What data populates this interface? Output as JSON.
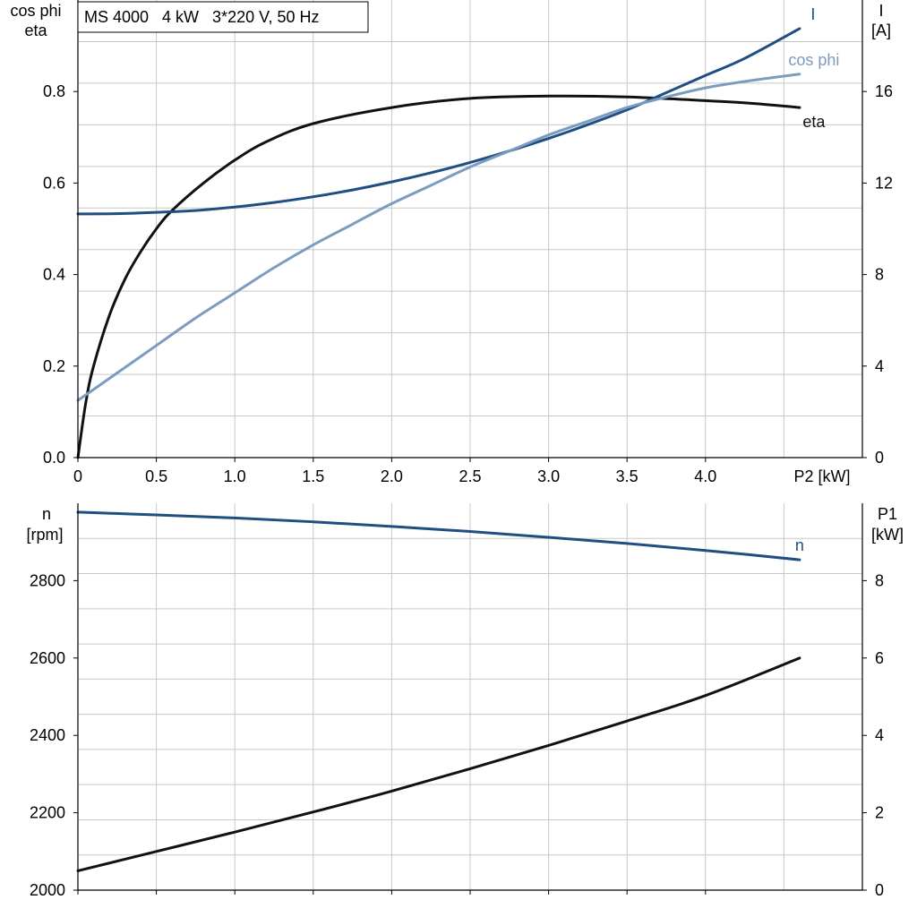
{
  "colors": {
    "eta": "#111111",
    "current": "#1f4e82",
    "cos_phi": "#7a9dbf",
    "speed": "#1f4e82",
    "p1": "#111111",
    "grid": "#c8c8c8",
    "axis": "#000000"
  },
  "chart_data": [
    {
      "type": "line",
      "title": "MS 4000   4 kW   3*220 V, 50 Hz",
      "xlabel": "P2 [kW]",
      "ylabel_left": [
        "cos phi",
        "eta"
      ],
      "ylabel_right": [
        "I",
        "[A]"
      ],
      "xlim": [
        0,
        5
      ],
      "ylim_left": [
        0,
        1.0
      ],
      "ylim_right": [
        0,
        20
      ],
      "x_ticks": [
        0,
        0.5,
        1.0,
        1.5,
        2.0,
        2.5,
        3.0,
        3.5,
        4.0
      ],
      "x_tick_labels": [
        "0",
        "0.5",
        "1.0",
        "1.5",
        "2.0",
        "2.5",
        "3.0",
        "3.5",
        "4.0"
      ],
      "y_left_ticks": [
        0,
        0.2,
        0.4,
        0.6,
        0.8
      ],
      "y_left_tick_labels": [
        "0.0",
        "0.2",
        "0.4",
        "0.6",
        "0.8"
      ],
      "y_right_ticks": [
        0,
        4,
        8,
        12,
        16
      ],
      "y_right_tick_labels": [
        "0",
        "4",
        "8",
        "12",
        "16"
      ],
      "grid": true,
      "series": [
        {
          "name": "eta",
          "axis": "left",
          "x": [
            0,
            0.05,
            0.1,
            0.2,
            0.3,
            0.4,
            0.5,
            0.6,
            0.8,
            1.0,
            1.2,
            1.5,
            2.0,
            2.5,
            3.0,
            3.5,
            4.0,
            4.3,
            4.6
          ],
          "y": [
            0.0,
            0.12,
            0.2,
            0.31,
            0.39,
            0.45,
            0.5,
            0.54,
            0.6,
            0.65,
            0.69,
            0.73,
            0.765,
            0.785,
            0.79,
            0.788,
            0.78,
            0.774,
            0.765
          ]
        },
        {
          "name": "I",
          "axis": "right",
          "x": [
            0,
            0.25,
            0.5,
            0.75,
            1.0,
            1.25,
            1.5,
            1.75,
            2.0,
            2.25,
            2.5,
            2.75,
            3.0,
            3.25,
            3.5,
            3.75,
            4.0,
            4.25,
            4.6
          ],
          "y": [
            10.65,
            10.66,
            10.72,
            10.8,
            10.95,
            11.15,
            11.4,
            11.7,
            12.05,
            12.45,
            12.9,
            13.4,
            13.95,
            14.55,
            15.2,
            15.95,
            16.7,
            17.45,
            18.75
          ]
        },
        {
          "name": "cos phi",
          "axis": "left",
          "x": [
            0,
            0.25,
            0.5,
            0.75,
            1.0,
            1.25,
            1.5,
            1.75,
            2.0,
            2.25,
            2.5,
            2.75,
            3.0,
            3.25,
            3.5,
            3.75,
            4.0,
            4.25,
            4.6
          ],
          "y": [
            0.125,
            0.185,
            0.245,
            0.305,
            0.36,
            0.415,
            0.465,
            0.51,
            0.555,
            0.595,
            0.635,
            0.67,
            0.705,
            0.735,
            0.765,
            0.788,
            0.808,
            0.822,
            0.838
          ]
        }
      ]
    },
    {
      "type": "line",
      "xlim": [
        0,
        5
      ],
      "ylabel_left": [
        "n",
        "[rpm]"
      ],
      "ylabel_right": [
        "P1",
        "[kW]"
      ],
      "ylim_left": [
        2000,
        3000
      ],
      "ylim_right": [
        0,
        10
      ],
      "y_left_ticks": [
        2000,
        2200,
        2400,
        2600,
        2800
      ],
      "y_left_tick_labels": [
        "2000",
        "2200",
        "2400",
        "2600",
        "2800"
      ],
      "y_right_ticks": [
        0,
        2,
        4,
        6,
        8
      ],
      "y_right_tick_labels": [
        "0",
        "2",
        "4",
        "6",
        "8"
      ],
      "grid": true,
      "series": [
        {
          "name": "n",
          "axis": "left",
          "x": [
            0,
            0.5,
            1.0,
            1.5,
            2.0,
            2.5,
            3.0,
            3.5,
            4.0,
            4.6
          ],
          "y": [
            2977,
            2970,
            2962,
            2952,
            2940,
            2927,
            2912,
            2896,
            2878,
            2854
          ]
        },
        {
          "name": "",
          "axis": "right",
          "x": [
            0,
            0.5,
            1.0,
            1.5,
            2.0,
            2.5,
            3.0,
            3.5,
            4.0,
            4.6
          ],
          "y": [
            0.5,
            1.0,
            1.5,
            2.02,
            2.56,
            3.14,
            3.74,
            4.37,
            5.03,
            6.0
          ]
        }
      ]
    }
  ]
}
